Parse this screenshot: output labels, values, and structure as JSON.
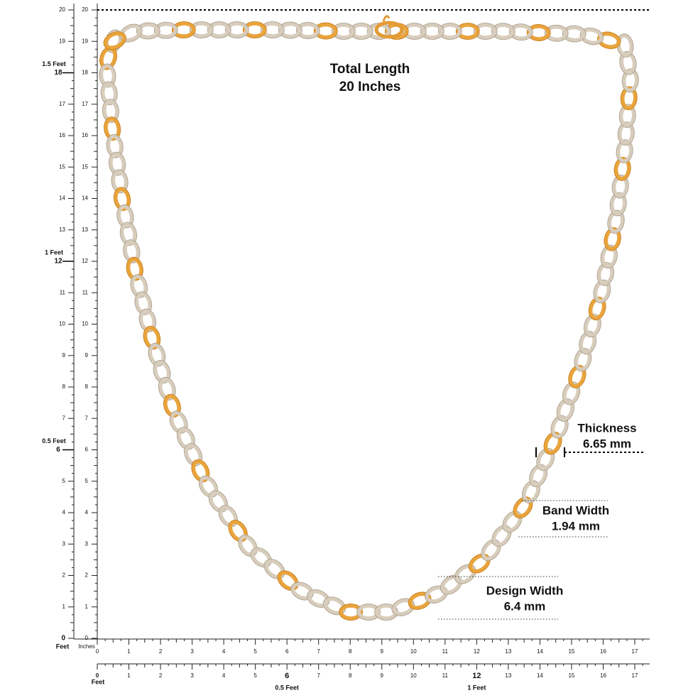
{
  "annotations": {
    "total_length": {
      "title": "Total Length",
      "value": "20 Inches"
    },
    "thickness": {
      "title": "Thickness",
      "value": "6.65 mm"
    },
    "band_width": {
      "title": "Band Width",
      "value": "1.94 mm"
    },
    "design_width": {
      "title": "Design Width",
      "value": "6.4 mm"
    }
  },
  "left_ruler": {
    "outer": [
      0,
      1,
      2,
      3,
      4,
      5,
      null,
      7,
      8,
      9,
      10,
      11,
      null,
      13,
      14,
      15,
      16,
      17,
      null,
      19,
      20
    ],
    "inner": [
      0,
      1,
      2,
      3,
      4,
      5,
      6,
      7,
      8,
      9,
      10,
      11,
      12,
      13,
      14,
      15,
      16,
      17,
      18,
      19,
      20
    ],
    "feet": [
      {
        "label": "0.5 Feet",
        "inches": 6
      },
      {
        "label": "1 Feet",
        "inches": 12
      },
      {
        "label": "1.5 Feet",
        "inches": 18
      }
    ]
  },
  "bottom_ruler": {
    "unit_feet": "Feet",
    "unit_inches": "Inches",
    "inches": [
      0,
      1,
      2,
      3,
      4,
      5,
      6,
      7,
      8,
      9,
      10,
      11,
      12,
      13,
      14,
      15,
      16,
      17
    ],
    "feet_ruler": [
      0,
      1,
      2,
      3,
      4,
      5,
      6,
      7,
      8,
      9,
      10,
      11,
      12,
      13,
      14,
      15,
      16,
      17
    ],
    "feet_ruler_unit": "Feet",
    "feet": [
      {
        "label": "0.5 Feet",
        "inches": 6
      },
      {
        "label": "1 Feet",
        "inches": 12
      }
    ]
  }
}
